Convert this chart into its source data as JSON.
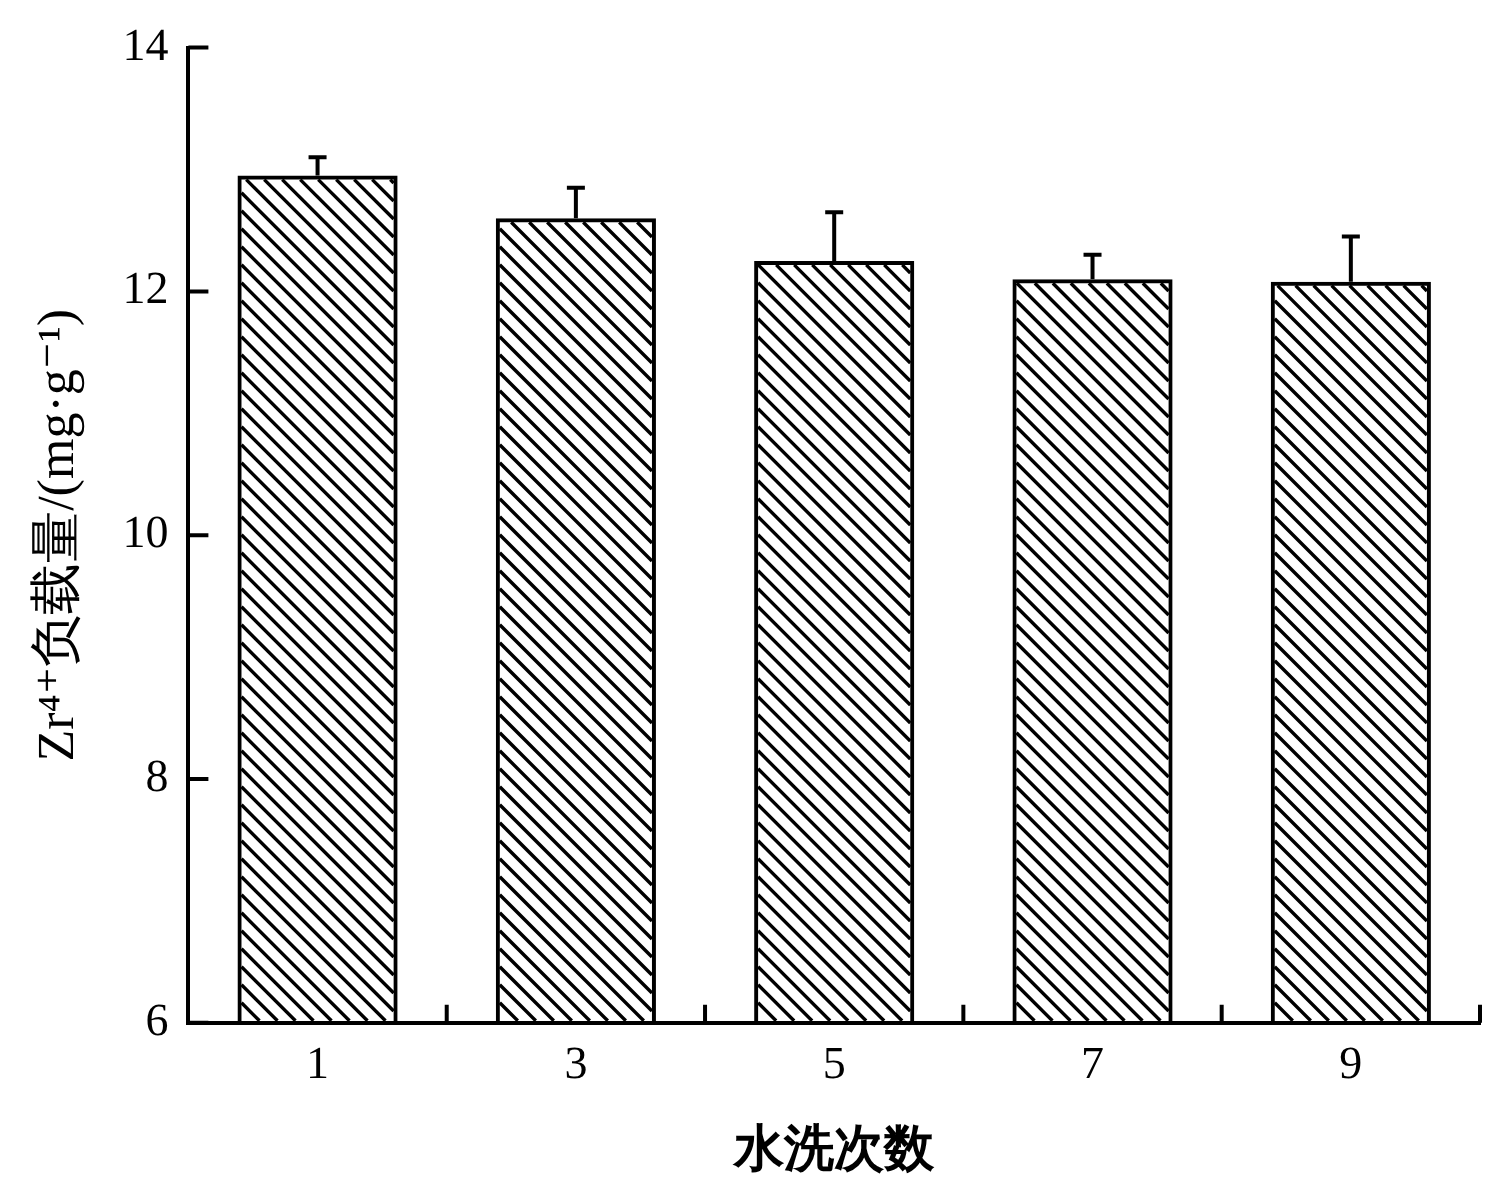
{
  "chart_data": {
    "type": "bar",
    "xlabel": "水洗次数",
    "ylabel": "Zr⁴⁺负载量/(mg·g⁻¹)",
    "categories": [
      "1",
      "3",
      "5",
      "7",
      "9"
    ],
    "values": [
      12.95,
      12.6,
      12.25,
      12.1,
      12.08
    ],
    "errors": [
      [
        12.95,
        13.1
      ],
      [
        12.6,
        12.85
      ],
      [
        12.25,
        12.65
      ],
      [
        12.1,
        12.3
      ],
      [
        12.08,
        12.45
      ]
    ],
    "color": "#000000",
    "ylim": [
      6,
      14
    ],
    "yticks": [
      6,
      8,
      10,
      12,
      14
    ]
  }
}
